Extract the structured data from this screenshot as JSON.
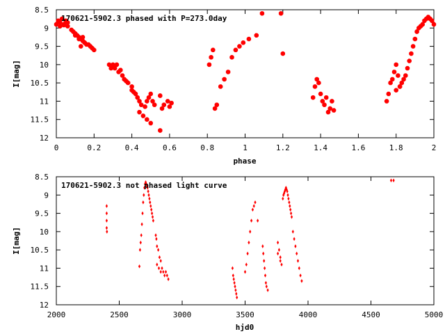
{
  "chart_data": [
    {
      "type": "scatter",
      "title": "170621-5902.3 phased with P=273.0day",
      "xlabel": "phase",
      "ylabel": "I[mag]",
      "xlim": [
        0,
        2
      ],
      "ylim": [
        12,
        8.5
      ],
      "y_inverted": true,
      "x_ticks": [
        "0",
        "0.2",
        "0.4",
        "0.6",
        "0.8",
        "1",
        "1.2",
        "1.4",
        "1.6",
        "1.8",
        "2"
      ],
      "y_ticks": [
        "8.5",
        "9",
        "9.5",
        "10",
        "10.5",
        "11",
        "11.5",
        "12"
      ],
      "marker_color": "#ff0000",
      "marker": "filled-octagon",
      "series": [
        {
          "x": [
            0.0,
            0.01,
            0.02,
            0.03,
            0.04,
            0.05,
            0.06,
            0.02,
            0.04,
            0.06,
            0.08,
            0.09,
            0.1,
            0.11,
            0.12,
            0.13,
            0.14,
            0.15,
            0.16,
            0.1,
            0.12,
            0.14,
            0.17,
            0.18,
            0.19,
            0.2,
            0.13,
            0.15,
            0.28,
            0.3,
            0.31,
            0.32,
            0.33,
            0.29,
            0.3,
            0.34,
            0.35,
            0.36,
            0.37,
            0.38,
            0.4,
            0.4,
            0.41,
            0.42,
            0.43,
            0.44,
            0.45,
            0.47,
            0.48,
            0.49,
            0.5,
            0.51,
            0.52,
            0.44,
            0.46,
            0.48,
            0.5,
            0.55,
            0.56,
            0.57,
            0.59,
            0.6,
            0.61,
            0.55,
            0.81,
            0.82,
            0.83,
            0.84,
            0.85,
            0.87,
            0.89,
            0.91,
            0.93,
            0.95,
            0.97,
            0.99,
            1.02,
            1.06,
            1.09,
            1.19,
            1.2,
            1.36,
            1.37,
            1.38,
            1.39,
            1.4,
            1.41,
            1.42,
            1.43,
            1.44,
            1.45,
            1.46,
            1.47,
            1.75,
            1.76,
            1.77,
            1.78,
            1.79,
            1.8,
            1.81,
            1.82,
            1.83,
            1.84,
            1.85,
            1.86,
            1.87,
            1.88,
            1.89,
            1.9,
            1.91,
            1.92,
            1.93,
            1.94,
            1.95,
            1.96,
            1.97,
            1.98,
            1.99,
            2.0,
            1.8,
            1.82
          ],
          "y": [
            8.9,
            8.8,
            8.85,
            8.75,
            8.9,
            8.8,
            8.85,
            8.95,
            8.92,
            8.95,
            9.05,
            9.1,
            9.15,
            9.2,
            9.25,
            9.3,
            9.35,
            9.4,
            9.45,
            9.2,
            9.3,
            9.25,
            9.45,
            9.5,
            9.55,
            9.6,
            9.5,
            9.4,
            10.0,
            10.05,
            10.1,
            10.0,
            10.2,
            10.1,
            10.0,
            10.15,
            10.3,
            10.4,
            10.45,
            10.5,
            10.6,
            10.7,
            10.75,
            10.8,
            10.9,
            11.0,
            11.1,
            11.15,
            11.0,
            10.9,
            10.8,
            11.0,
            11.1,
            11.3,
            11.4,
            11.5,
            11.6,
            11.8,
            11.2,
            11.1,
            11.0,
            11.15,
            11.05,
            10.85,
            10.0,
            9.8,
            9.6,
            11.2,
            11.1,
            10.6,
            10.4,
            10.2,
            9.8,
            9.6,
            9.5,
            9.4,
            9.3,
            9.2,
            8.6,
            8.6,
            9.7,
            10.9,
            10.6,
            10.4,
            10.5,
            10.8,
            11.0,
            11.1,
            10.9,
            11.3,
            11.2,
            11.0,
            11.25,
            11.0,
            10.8,
            10.5,
            10.4,
            10.2,
            10.0,
            10.3,
            10.6,
            10.5,
            10.4,
            10.3,
            10.1,
            9.9,
            9.7,
            9.5,
            9.3,
            9.1,
            9.0,
            8.95,
            8.9,
            8.8,
            8.75,
            8.7,
            8.75,
            8.8,
            8.9,
            10.7,
            10.6
          ]
        }
      ]
    },
    {
      "type": "scatter",
      "title": "170621-5902.3 not phased light curve",
      "xlabel": "hjd0",
      "ylabel": "I[mag]",
      "xlim": [
        2000,
        5000
      ],
      "ylim": [
        12,
        8.5
      ],
      "y_inverted": true,
      "x_ticks": [
        "2000",
        "2500",
        "3000",
        "3500",
        "4000",
        "4500",
        "5000"
      ],
      "y_ticks": [
        "8.5",
        "9",
        "9.5",
        "10",
        "10.5",
        "11",
        "11.5",
        "12"
      ],
      "marker_color": "#ff0000",
      "marker": "small-diamond",
      "series": [
        {
          "x": [
            2400,
            2400,
            2400,
            2400,
            2402,
            2660,
            2665,
            2670,
            2675,
            2680,
            2685,
            2690,
            2695,
            2700,
            2705,
            2710,
            2715,
            2720,
            2725,
            2730,
            2735,
            2740,
            2745,
            2750,
            2755,
            2760,
            2765,
            2770,
            2790,
            2795,
            2800,
            2810,
            2820,
            2830,
            2840,
            2850,
            2860,
            2870,
            2880,
            2890,
            2800,
            2815,
            2830,
            3400,
            3405,
            3410,
            3415,
            3420,
            3425,
            3430,
            3435,
            3500,
            3510,
            3520,
            3530,
            3540,
            3550,
            3560,
            3570,
            3580,
            3600,
            3640,
            3645,
            3650,
            3655,
            3660,
            3665,
            3670,
            3680,
            3760,
            3770,
            3780,
            3790,
            3800,
            3805,
            3810,
            3815,
            3820,
            3825,
            3830,
            3835,
            3840,
            3845,
            3850,
            3855,
            3860,
            3865,
            3870,
            3880,
            3890,
            3900,
            3910,
            3920,
            3930,
            3940,
            3950,
            4660,
            4680,
            3760,
            3780
          ],
          "y": [
            9.3,
            9.5,
            9.7,
            9.9,
            10.0,
            10.95,
            10.5,
            10.3,
            10.1,
            9.8,
            9.5,
            9.2,
            9.0,
            8.8,
            8.7,
            8.65,
            8.7,
            8.75,
            8.8,
            8.9,
            9.0,
            9.1,
            9.2,
            9.3,
            9.4,
            9.5,
            9.6,
            9.7,
            10.1,
            10.2,
            10.4,
            10.5,
            10.7,
            10.8,
            11.0,
            11.1,
            11.2,
            11.1,
            11.2,
            11.3,
            10.9,
            11.0,
            11.1,
            11.0,
            11.2,
            11.3,
            11.4,
            11.5,
            11.6,
            11.7,
            11.8,
            11.1,
            10.9,
            10.6,
            10.3,
            10.0,
            9.7,
            9.4,
            9.3,
            9.2,
            9.7,
            10.4,
            10.6,
            10.8,
            11.0,
            11.2,
            11.4,
            11.5,
            11.6,
            10.3,
            10.5,
            10.7,
            10.9,
            9.1,
            9.0,
            8.95,
            8.9,
            8.85,
            8.8,
            8.85,
            8.9,
            9.0,
            9.1,
            9.2,
            9.3,
            9.4,
            9.5,
            9.6,
            10.0,
            10.2,
            10.4,
            10.6,
            10.8,
            11.0,
            11.2,
            11.35,
            8.6,
            8.6,
            10.6,
            10.8
          ]
        }
      ]
    }
  ]
}
